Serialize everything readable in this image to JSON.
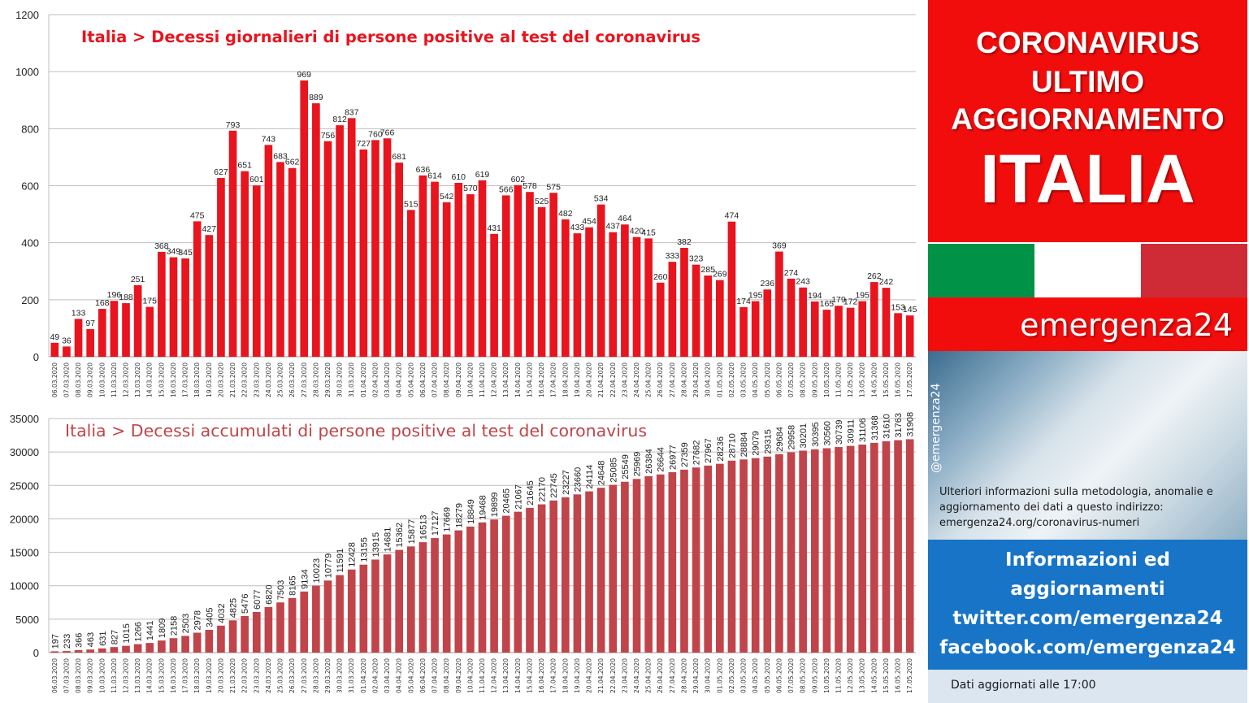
{
  "chart_data": [
    {
      "type": "bar",
      "title": "Italia > Decessi giornalieri di persone positive al test del coronavirus",
      "xlabel": "",
      "ylabel": "",
      "ylim": [
        0,
        1200
      ],
      "yticks": [
        0,
        200,
        400,
        600,
        800,
        1000,
        1200
      ],
      "grid": true,
      "bar_color": "#e8141e",
      "categories": [
        "06.03.2020",
        "07.03.2020",
        "08.03.2020",
        "09.03.2020",
        "10.03.2020",
        "11.03.2020",
        "12.03.2020",
        "13.03.2020",
        "14.03.2020",
        "15.03.2020",
        "16.03.2020",
        "17.03.2020",
        "18.03.2020",
        "19.03.2020",
        "20.03.2020",
        "21.03.2020",
        "22.03.2020",
        "23.03.2020",
        "24.03.2020",
        "25.03.2020",
        "26.03.2020",
        "27.03.2020",
        "28.03.2020",
        "29.03.2020",
        "30.03.2020",
        "31.03.2020",
        "01.04.2020",
        "02.04.2020",
        "03.04.2020",
        "04.04.2020",
        "05.04.2020",
        "06.04.2020",
        "07.04.2020",
        "08.04.2020",
        "09.04.2020",
        "10.04.2020",
        "11.04.2020",
        "12.04.2020",
        "13.04.2020",
        "14.04.2020",
        "15.04.2020",
        "16.04.2020",
        "17.04.2020",
        "18.04.2020",
        "19.04.2020",
        "20.04.2020",
        "21.04.2020",
        "22.04.2020",
        "23.04.2020",
        "24.04.2020",
        "25.04.2020",
        "26.04.2020",
        "27.04.2020",
        "28.04.2020",
        "29.04.2020",
        "30.04.2020",
        "01.05.2020",
        "02.05.2020",
        "03.05.2020",
        "04.05.2020",
        "05.05.2020",
        "06.05.2020",
        "07.05.2020",
        "08.05.2020",
        "09.05.2020",
        "10.05.2020",
        "11.05.2020",
        "12.05.2020",
        "13.05.2020",
        "14.05.2020",
        "15.05.2020",
        "16.05.2020",
        "17.05.2020"
      ],
      "values": [
        49,
        36,
        133,
        97,
        168,
        196,
        188,
        251,
        175,
        368,
        349,
        345,
        475,
        427,
        627,
        793,
        651,
        601,
        743,
        683,
        662,
        969,
        889,
        756,
        812,
        837,
        727,
        760,
        766,
        681,
        515,
        636,
        614,
        542,
        610,
        570,
        619,
        431,
        566,
        602,
        578,
        525,
        575,
        482,
        433,
        454,
        534,
        437,
        464,
        420,
        415,
        260,
        333,
        382,
        323,
        285,
        269,
        474,
        174,
        195,
        236,
        369,
        274,
        243,
        194,
        165,
        179,
        172,
        195,
        262,
        242,
        153,
        145
      ]
    },
    {
      "type": "bar",
      "title": "Italia > Decessi accumulati di persone positive al test del coronavirus",
      "xlabel": "",
      "ylabel": "",
      "ylim": [
        0,
        35000
      ],
      "yticks": [
        0,
        5000,
        10000,
        15000,
        20000,
        25000,
        30000,
        35000
      ],
      "grid": true,
      "bar_color": "#c0444a",
      "categories": [
        "06.03.2020",
        "07.03.2020",
        "08.03.2020",
        "09.03.2020",
        "10.03.2020",
        "11.03.2020",
        "12.03.2020",
        "13.03.2020",
        "14.03.2020",
        "15.03.2020",
        "16.03.2020",
        "17.03.2020",
        "18.03.2020",
        "19.03.2020",
        "20.03.2020",
        "21.03.2020",
        "22.03.2020",
        "23.03.2020",
        "24.03.2020",
        "25.03.2020",
        "26.03.2020",
        "27.03.2020",
        "28.03.2020",
        "29.03.2020",
        "30.03.2020",
        "31.03.2020",
        "01.04.2020",
        "02.04.2020",
        "03.04.2020",
        "04.04.2020",
        "05.04.2020",
        "06.04.2020",
        "07.04.2020",
        "08.04.2020",
        "09.04.2020",
        "10.04.2020",
        "11.04.2020",
        "12.04.2020",
        "13.04.2020",
        "14.04.2020",
        "15.04.2020",
        "16.04.2020",
        "17.04.2020",
        "18.04.2020",
        "19.04.2020",
        "20.04.2020",
        "21.04.2020",
        "22.04.2020",
        "23.04.2020",
        "24.04.2020",
        "25.04.2020",
        "26.04.2020",
        "27.04.2020",
        "28.04.2020",
        "29.04.2020",
        "30.04.2020",
        "01.05.2020",
        "02.05.2020",
        "03.05.2020",
        "04.05.2020",
        "05.05.2020",
        "06.05.2020",
        "07.05.2020",
        "08.05.2020",
        "09.05.2020",
        "10.05.2020",
        "11.05.2020",
        "12.05.2020",
        "13.05.2020",
        "14.05.2020",
        "15.05.2020",
        "16.05.2020",
        "17.05.2020"
      ],
      "values": [
        197,
        233,
        366,
        463,
        631,
        827,
        1015,
        1266,
        1441,
        1809,
        2158,
        2503,
        2978,
        3405,
        4032,
        4825,
        5476,
        6077,
        6820,
        7503,
        8165,
        9134,
        10023,
        10779,
        11591,
        12428,
        13155,
        13915,
        14681,
        15362,
        15877,
        16513,
        17127,
        17669,
        18279,
        18849,
        19468,
        19899,
        20465,
        21067,
        21645,
        22170,
        22745,
        23227,
        23660,
        24114,
        24648,
        25085,
        25549,
        25969,
        26384,
        26644,
        26977,
        27359,
        27682,
        27967,
        28236,
        28710,
        28884,
        29079,
        29315,
        29684,
        29958,
        30201,
        30395,
        30560,
        30739,
        30911,
        31106,
        31368,
        31610,
        31763,
        31908
      ]
    }
  ],
  "sidebar": {
    "header_line1": "CORONAVIRUS",
    "header_line2": "ULTIMO",
    "header_line3": "AGGIORNAMENTO",
    "header_country": "ITALIA",
    "brand": "emergenza24",
    "handle": "@emergenza24",
    "info_text": "Ulteriori informazioni sulla metodologia, anomalie e aggiornamento dei dati a questo indirizzo: emergenza24.org/coronavirus-numeri",
    "social_line1": "Informazioni ed",
    "social_line2": "aggiornamenti",
    "social_line3": "twitter.com/emergenza24",
    "social_line4": "facebook.com/emergenza24",
    "updated": "Dati aggiornati alle 17:00"
  },
  "colors": {
    "red_panel": "#f20d0d",
    "blue_panel": "#1874c6",
    "flag_green": "#009246",
    "flag_white": "#ffffff",
    "flag_red": "#ce2b37"
  }
}
